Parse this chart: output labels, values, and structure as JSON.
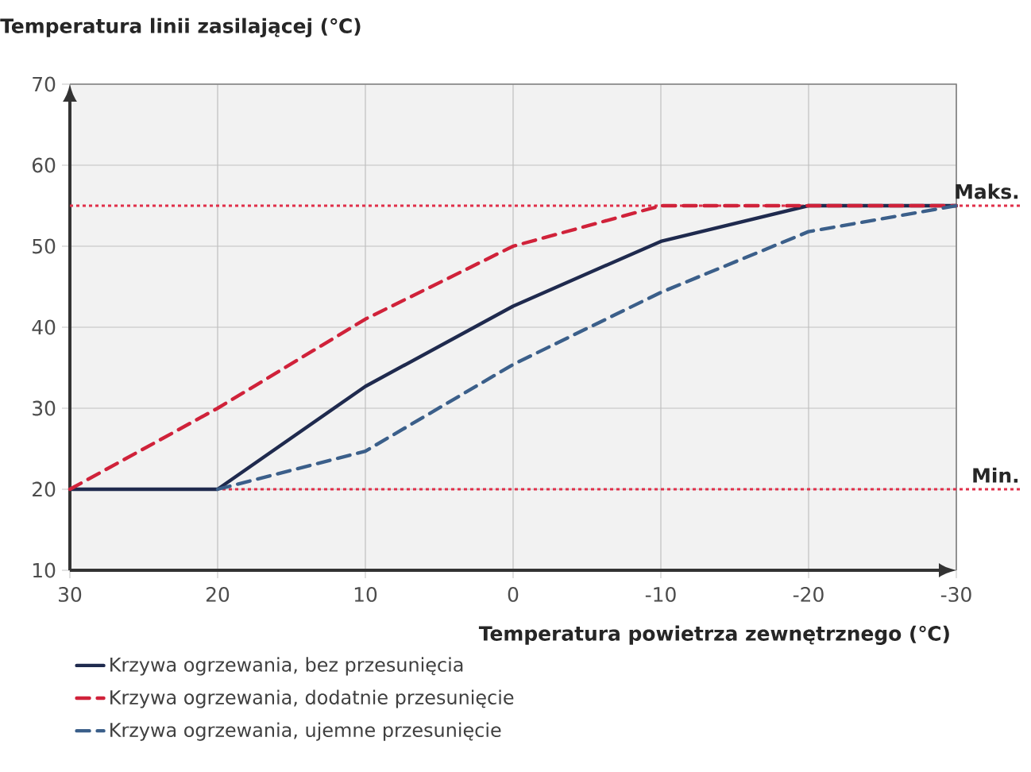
{
  "chart_data": {
    "type": "line",
    "xlabel": "Temperatura powietrza zewnętrznego (℃)",
    "ylabel": "Temperatura linii zasilającej (℃)",
    "x": [
      30,
      20,
      10,
      0,
      -10,
      -20,
      -30
    ],
    "series": [
      {
        "name": "Krzywa ogrzewania, bez przesunięcia",
        "color": "#1f2a4e",
        "line_style": "solid",
        "values": [
          20,
          20,
          32.7,
          42.6,
          50.6,
          55,
          55
        ]
      },
      {
        "name": "Krzywa ogrzewania, dodatnie przesunięcie",
        "color": "#d0223a",
        "line_style": "dashed",
        "values": [
          20,
          30,
          41,
          50,
          55,
          55,
          55
        ]
      },
      {
        "name": "Krzywa ogrzewania, ujemne przesunięcie",
        "color": "#3b5f8a",
        "line_style": "dashed",
        "values": [
          null,
          20,
          24.7,
          35.4,
          44.3,
          51.8,
          55
        ]
      }
    ],
    "xlim": [
      30,
      -30
    ],
    "xticks": [
      30,
      20,
      10,
      0,
      -10,
      -20,
      -30
    ],
    "ylim": [
      10,
      70
    ],
    "yticks": [
      10,
      20,
      30,
      40,
      50,
      60,
      70
    ],
    "ref_lines": [
      {
        "axis": "y",
        "value": 55,
        "label": "Maks.",
        "color": "#e0304a",
        "line_style": "dotted"
      },
      {
        "axis": "y",
        "value": 20,
        "label": "Min.",
        "color": "#e0304a",
        "line_style": "dotted"
      }
    ],
    "grid": true,
    "legend": "bottom",
    "marker": "none"
  }
}
